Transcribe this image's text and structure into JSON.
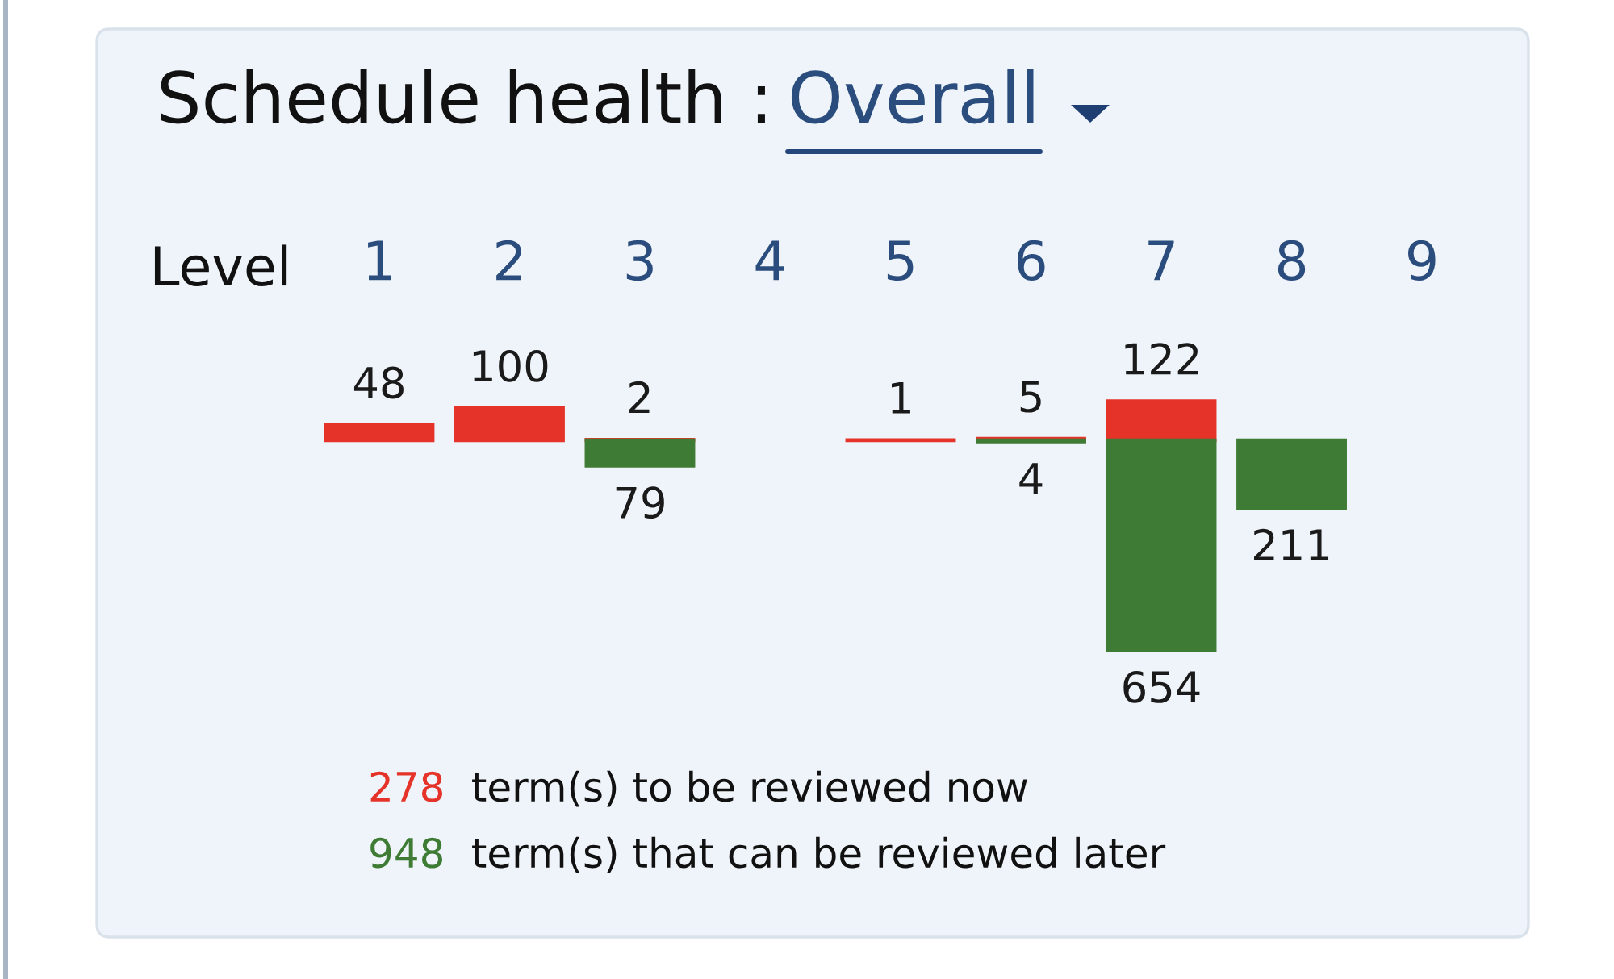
{
  "chart_data": {
    "type": "bar",
    "title": "Schedule health :",
    "subtitle": "Overall",
    "xlabel": "Level",
    "categories": [
      "1",
      "2",
      "3",
      "4",
      "5",
      "6",
      "7",
      "8",
      "9"
    ],
    "series": [
      {
        "name": "278 term(s) to be reviewed now",
        "color": "#e5332a",
        "values": [
          48,
          100,
          2,
          null,
          1,
          5,
          122,
          null,
          null
        ],
        "value_labels": [
          "48",
          "100",
          "2",
          null,
          "1",
          "5",
          "122",
          null,
          null
        ]
      },
      {
        "name": "948 term(s) that can be reviewed later",
        "color": "#3e7b34",
        "values": [
          null,
          null,
          -79,
          null,
          null,
          -4,
          -654,
          -211,
          null
        ]
      }
    ],
    "annotations": [
      {
        "text": "79",
        "x": "3",
        "y": -79
      },
      {
        "text": "4",
        "x": "6",
        "y": -4
      },
      {
        "text": "654",
        "x": "7",
        "y": -654
      },
      {
        "text": "211",
        "x": "8",
        "y": -211
      }
    ],
    "tick_labels": "x",
    "grid": false
  }
}
